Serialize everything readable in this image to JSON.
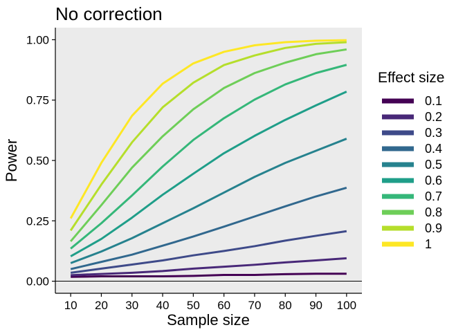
{
  "chart_data": {
    "type": "line",
    "title": "No correction",
    "xlabel": "Sample size",
    "ylabel": "Power",
    "x": [
      10,
      20,
      30,
      40,
      50,
      60,
      70,
      80,
      90,
      100
    ],
    "xlim": [
      5,
      105
    ],
    "ylim": [
      -0.05,
      1.05
    ],
    "x_ticks": [
      "10",
      "20",
      "30",
      "40",
      "50",
      "60",
      "70",
      "80",
      "90",
      "100"
    ],
    "y_ticks": [
      {
        "value": 0.0,
        "label": "0.00"
      },
      {
        "value": 0.25,
        "label": "0.25"
      },
      {
        "value": 0.5,
        "label": "0.50"
      },
      {
        "value": 0.75,
        "label": "0.75"
      },
      {
        "value": 1.0,
        "label": "1.00"
      }
    ],
    "grid": false,
    "panel_background": "#ebebeb",
    "reference_line_y": 0,
    "legend": {
      "title": "Effect size",
      "position": "right"
    },
    "series": [
      {
        "name": "0.1",
        "color": "#440154",
        "values": [
          0.018,
          0.02,
          0.02,
          0.02,
          0.022,
          0.026,
          0.026,
          0.029,
          0.031,
          0.031
        ]
      },
      {
        "name": "0.2",
        "color": "#482878",
        "values": [
          0.025,
          0.03,
          0.035,
          0.042,
          0.052,
          0.06,
          0.068,
          0.078,
          0.086,
          0.095
        ]
      },
      {
        "name": "0.3",
        "color": "#3e4a89",
        "values": [
          0.035,
          0.052,
          0.069,
          0.086,
          0.107,
          0.125,
          0.145,
          0.168,
          0.188,
          0.207
        ]
      },
      {
        "name": "0.4",
        "color": "#31688e",
        "values": [
          0.05,
          0.08,
          0.11,
          0.147,
          0.185,
          0.226,
          0.268,
          0.31,
          0.351,
          0.387
        ]
      },
      {
        "name": "0.5",
        "color": "#26828e",
        "values": [
          0.075,
          0.123,
          0.178,
          0.24,
          0.302,
          0.367,
          0.432,
          0.49,
          0.54,
          0.59
        ]
      },
      {
        "name": "0.6",
        "color": "#1f9e89",
        "values": [
          0.103,
          0.175,
          0.263,
          0.358,
          0.445,
          0.53,
          0.602,
          0.668,
          0.728,
          0.785
        ]
      },
      {
        "name": "0.7",
        "color": "#35b779",
        "values": [
          0.135,
          0.24,
          0.355,
          0.475,
          0.585,
          0.675,
          0.752,
          0.815,
          0.862,
          0.896
        ]
      },
      {
        "name": "0.8",
        "color": "#6ece58",
        "values": [
          0.165,
          0.315,
          0.47,
          0.6,
          0.712,
          0.8,
          0.862,
          0.905,
          0.94,
          0.96
        ]
      },
      {
        "name": "0.9",
        "color": "#b5de2b",
        "values": [
          0.21,
          0.4,
          0.575,
          0.72,
          0.822,
          0.895,
          0.935,
          0.966,
          0.983,
          0.99
        ]
      },
      {
        "name": "1",
        "color": "#fde725",
        "values": [
          0.26,
          0.49,
          0.685,
          0.818,
          0.902,
          0.95,
          0.977,
          0.99,
          0.996,
          0.998
        ]
      }
    ]
  }
}
